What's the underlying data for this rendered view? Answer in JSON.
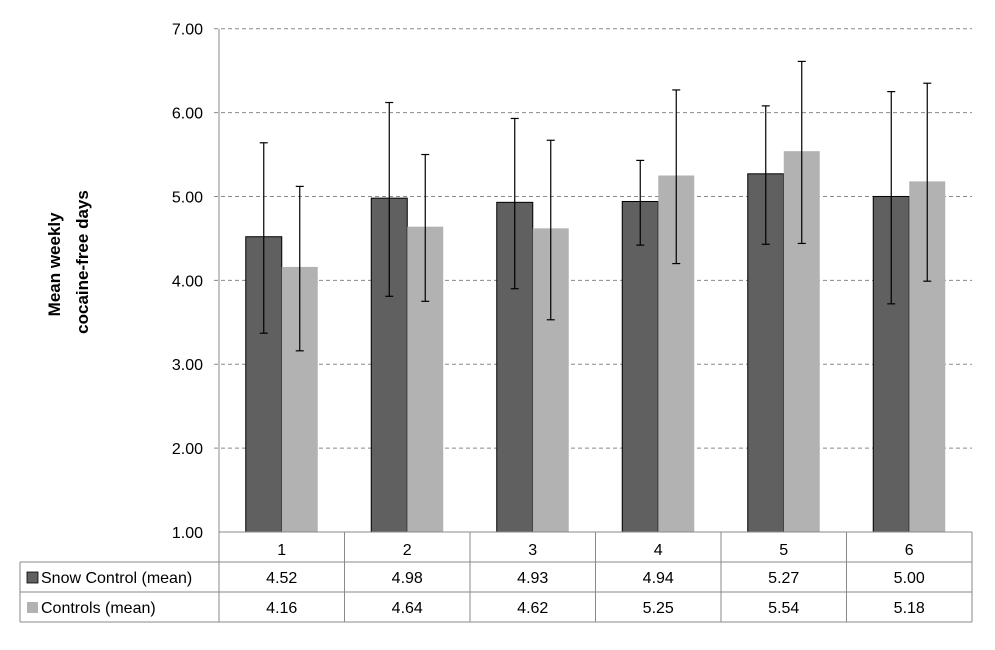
{
  "chart_data": {
    "type": "bar",
    "title": "",
    "xlabel": "",
    "ylabel": [
      "Mean weekly",
      "cocaine-free days"
    ],
    "ylim": [
      1.0,
      7.0
    ],
    "yticks": [
      "1.00",
      "2.00",
      "3.00",
      "4.00",
      "5.00",
      "6.00",
      "7.00"
    ],
    "grid": "horizontal dashed",
    "legend": "data-table below plot",
    "categories": [
      "1",
      "2",
      "3",
      "4",
      "5",
      "6"
    ],
    "series": [
      {
        "name": "Snow Control (mean)",
        "color": "#606060",
        "values": [
          4.52,
          4.98,
          4.93,
          4.94,
          5.27,
          5.0
        ],
        "labels": [
          "4.52",
          "4.98",
          "4.93",
          "4.94",
          "5.27",
          "5.00"
        ],
        "error_high": [
          5.64,
          6.12,
          5.93,
          5.43,
          6.08,
          6.25
        ],
        "error_low": [
          3.37,
          3.81,
          3.9,
          4.42,
          4.43,
          3.72
        ]
      },
      {
        "name": "Controls (mean)",
        "color": "#b2b2b2",
        "values": [
          4.16,
          4.64,
          4.62,
          5.25,
          5.54,
          5.18
        ],
        "labels": [
          "4.16",
          "4.64",
          "4.62",
          "5.25",
          "5.54",
          "5.18"
        ],
        "error_high": [
          5.12,
          5.5,
          5.67,
          6.27,
          6.61,
          6.35
        ],
        "error_low": [
          3.16,
          3.75,
          3.53,
          4.2,
          4.44,
          3.99
        ]
      }
    ]
  }
}
